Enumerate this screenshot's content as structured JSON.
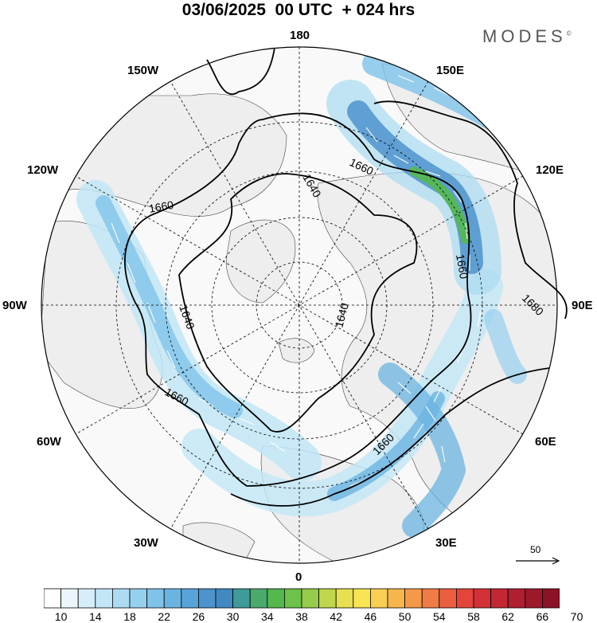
{
  "header": {
    "title": "03/06/2025  00 UTC  + 024 hrs",
    "brand": "MODES",
    "brand_mark": "©"
  },
  "map": {
    "projection": "north-polar-stereographic",
    "longitude_labels": [
      "180",
      "150E",
      "120E",
      "90E",
      "60E",
      "30E",
      "0",
      "30W",
      "60W",
      "90W",
      "120W",
      "150W"
    ],
    "contour_labels": [
      "1640",
      "1640",
      "1640",
      "1660",
      "1660",
      "1660",
      "1660",
      "1660",
      "1680"
    ],
    "reference_vector": {
      "label": "50"
    },
    "colors": {
      "land": "#f0f0f0",
      "ocean": "#f9f9f9",
      "contour": "#000000"
    }
  },
  "colorbar": {
    "ticks": [
      "10",
      "14",
      "18",
      "22",
      "26",
      "30",
      "34",
      "38",
      "42",
      "46",
      "50",
      "54",
      "58",
      "62",
      "66",
      "70"
    ],
    "colors": [
      "#ffffff",
      "#eaf6fc",
      "#d6eef9",
      "#c2e6f6",
      "#acdcf2",
      "#96d0ef",
      "#80c3ea",
      "#6bb4e2",
      "#5aa3d8",
      "#4d93cc",
      "#4189c0",
      "#3f9a9a",
      "#49aa6c",
      "#55b84e",
      "#6cc24a",
      "#97cb4b",
      "#c0d64e",
      "#e6e052",
      "#f8e455",
      "#f8cf52",
      "#f7b54e",
      "#f4994a",
      "#f07c45",
      "#ea5f40",
      "#e3453b",
      "#d33137",
      "#c22733",
      "#b01f2f",
      "#9d182b",
      "#8b1227"
    ]
  }
}
